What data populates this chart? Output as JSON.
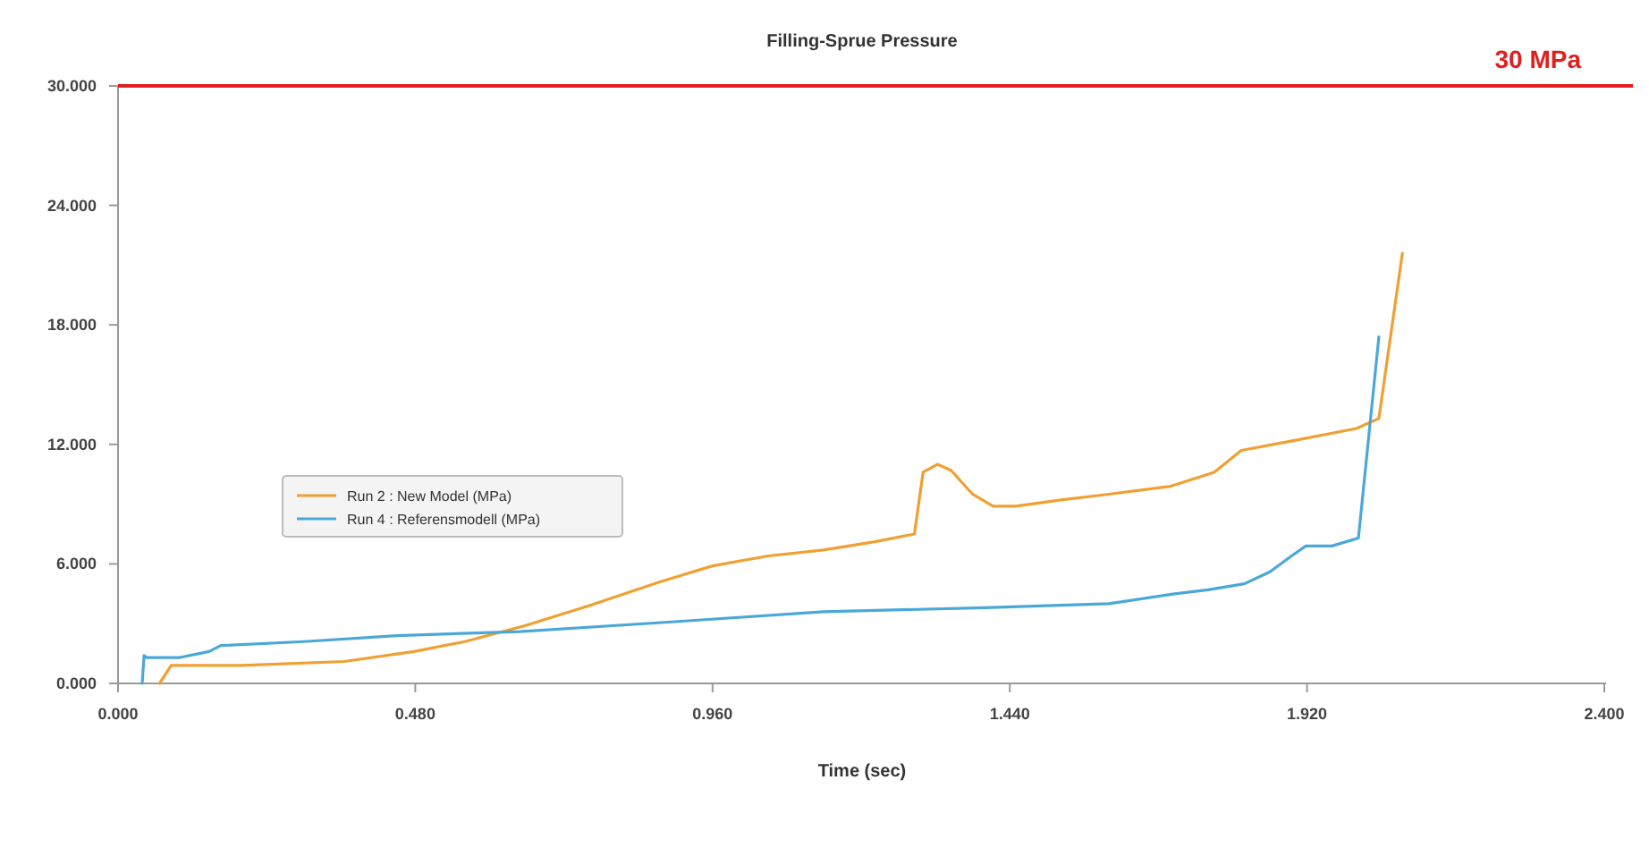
{
  "chart_data": {
    "type": "line",
    "title": "Filling-Sprue Pressure",
    "xlabel": "Time (sec)",
    "xlim": [
      0,
      2.4
    ],
    "ylim": [
      0,
      30
    ],
    "xticks": [
      {
        "value": 0,
        "label": "0.000"
      },
      {
        "value": 0.48,
        "label": "0.480"
      },
      {
        "value": 0.96,
        "label": "0.960"
      },
      {
        "value": 1.44,
        "label": "1.440"
      },
      {
        "value": 1.92,
        "label": "1.920"
      },
      {
        "value": 2.4,
        "label": "2.400"
      }
    ],
    "yticks": [
      {
        "value": 0,
        "label": "0.000"
      },
      {
        "value": 6,
        "label": "6.000"
      },
      {
        "value": 12,
        "label": "12.000"
      },
      {
        "value": 18,
        "label": "18.000"
      },
      {
        "value": 24,
        "label": "24.000"
      },
      {
        "value": 30,
        "label": "30.000"
      }
    ],
    "series": [
      {
        "name": "Run 2 : New Model (MPa)",
        "color": "#f0a030",
        "x": [
          0.067,
          0.086,
          0.2,
          0.365,
          0.478,
          0.56,
          0.657,
          0.76,
          0.875,
          0.96,
          1.05,
          1.139,
          1.22,
          1.286,
          1.3,
          1.323,
          1.345,
          1.38,
          1.413,
          1.45,
          1.52,
          1.6,
          1.7,
          1.77,
          1.814,
          1.9,
          2.0,
          2.036,
          2.074
        ],
        "values": [
          0,
          0.9,
          0.9,
          1.1,
          1.6,
          2.1,
          2.9,
          3.9,
          5.1,
          5.9,
          6.4,
          6.7,
          7.1,
          7.5,
          10.6,
          11.0,
          10.7,
          9.5,
          8.9,
          8.9,
          9.2,
          9.5,
          9.9,
          10.6,
          11.7,
          12.2,
          12.8,
          13.3,
          21.6
        ]
      },
      {
        "name": "Run 4 : Referensmodell (MPa)",
        "color": "#4aa8d8",
        "x": [
          0.039,
          0.042,
          0.046,
          0.1,
          0.147,
          0.166,
          0.3,
          0.45,
          0.648,
          0.9,
          1.139,
          1.4,
          1.6,
          1.706,
          1.76,
          1.819,
          1.86,
          1.895,
          1.918,
          1.96,
          2.003,
          2.036
        ],
        "values": [
          0,
          1.4,
          1.3,
          1.3,
          1.6,
          1.9,
          2.1,
          2.4,
          2.6,
          3.1,
          3.6,
          3.8,
          4.0,
          4.5,
          4.7,
          5.0,
          5.6,
          6.4,
          6.9,
          6.9,
          7.3,
          17.4
        ]
      }
    ],
    "ref_lines": [
      {
        "axis": "y",
        "value": 30,
        "label": "30 MPa",
        "color": "#e02020"
      }
    ],
    "legend": "left",
    "grid": false,
    "marker": "none",
    "line_style": "solid"
  }
}
